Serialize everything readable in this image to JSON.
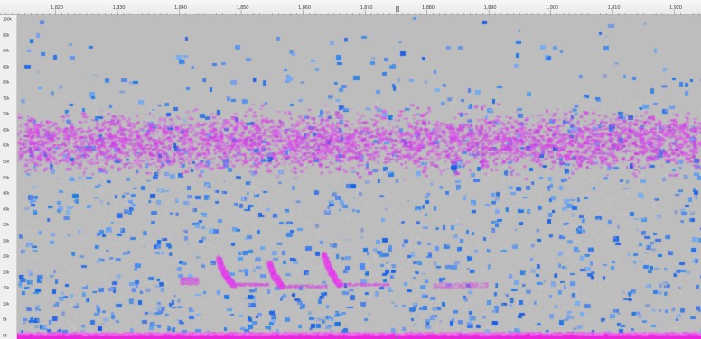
{
  "timeline": {
    "ticks": [
      "1,820",
      "1,830",
      "1,840",
      "1,850",
      "1,860",
      "1,870",
      "1,880",
      "1,890",
      "1,900",
      "1,910",
      "1,920"
    ]
  },
  "frequency_axis": {
    "labels": [
      "100k",
      "95k",
      "90k",
      "85k",
      "80k",
      "75k",
      "70k",
      "65k",
      "60k",
      "55k",
      "50k",
      "45k",
      "40k",
      "35k",
      "30k",
      "25k",
      "20k",
      "15k",
      "10k",
      "5k",
      "0k"
    ]
  },
  "colors": {
    "background": "#bdbdbd",
    "noise_blue": "#5e9ff0",
    "call_magenta": "#cc33ee",
    "baseline_magenta": "#ee22dd",
    "cursor": "#777c84"
  }
}
